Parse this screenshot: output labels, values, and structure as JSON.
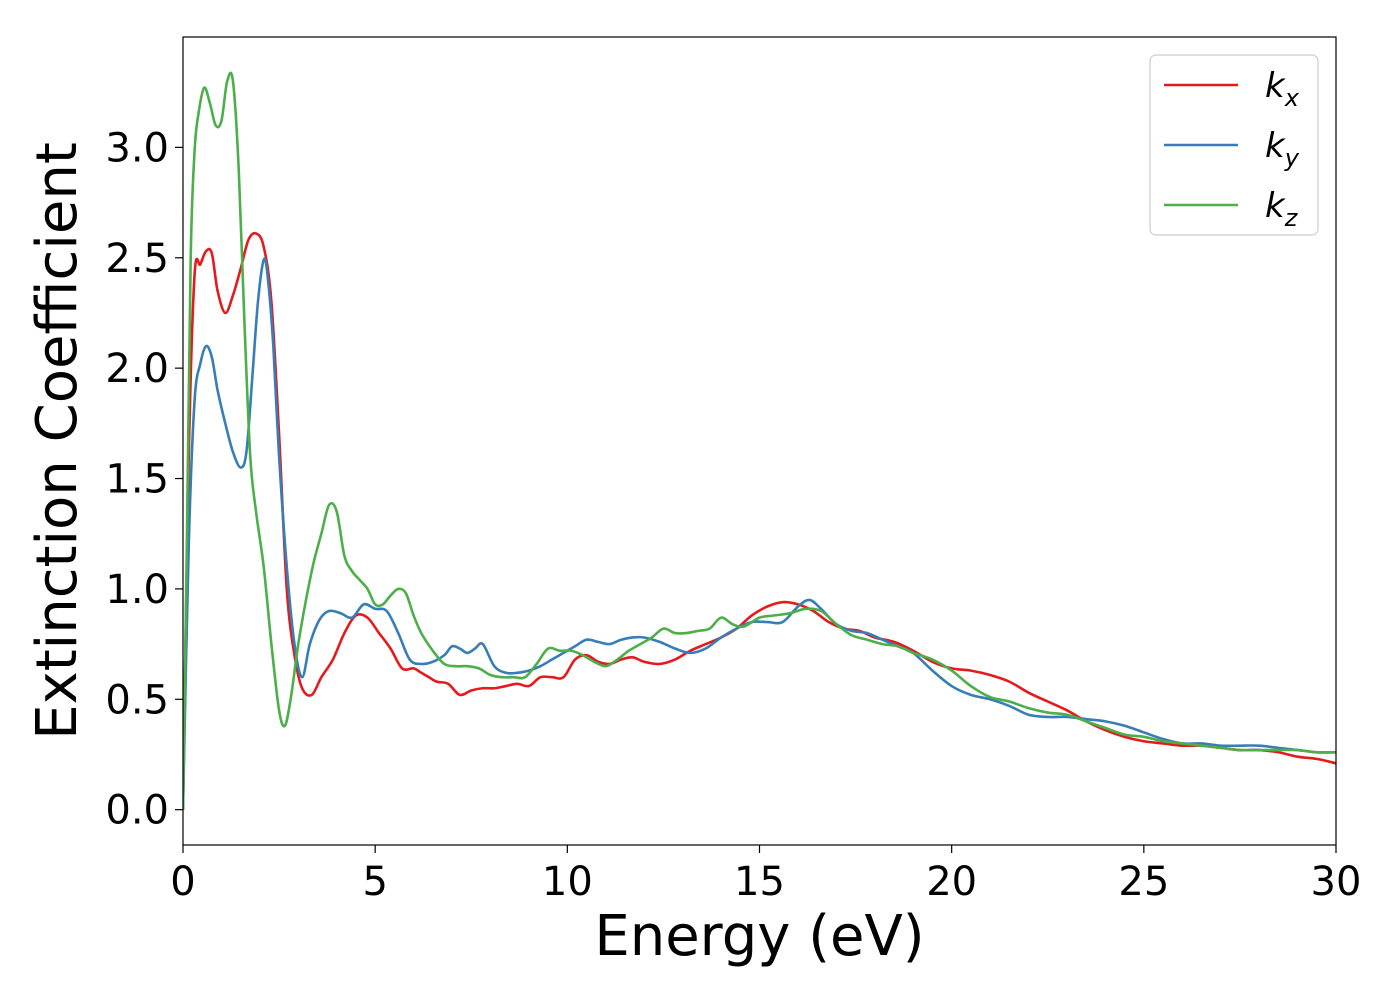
{
  "chart_data": {
    "type": "line",
    "xlabel": "Energy (eV)",
    "ylabel": "Extinction Coefficient",
    "xlim": [
      0,
      30
    ],
    "ylim": [
      -0.16,
      3.5
    ],
    "xticks": [
      "0",
      "5",
      "10",
      "15",
      "20",
      "25",
      "30"
    ],
    "yticks": [
      "0.0",
      "0.5",
      "1.0",
      "1.5",
      "2.0",
      "2.5",
      "3.0"
    ],
    "grid": false,
    "legend_position": "top-right",
    "series": [
      {
        "name": "k",
        "sub": "x",
        "color": "#e41a1c",
        "x": [
          0,
          0.15,
          0.3,
          0.45,
          0.6,
          0.75,
          0.9,
          1.1,
          1.3,
          1.5,
          1.7,
          1.9,
          2.1,
          2.3,
          2.5,
          2.7,
          2.9,
          3.1,
          3.35,
          3.6,
          3.9,
          4.2,
          4.5,
          4.8,
          5.1,
          5.4,
          5.7,
          6.0,
          6.2,
          6.4,
          6.6,
          6.9,
          7.2,
          7.5,
          7.8,
          8.1,
          8.4,
          8.7,
          9.0,
          9.3,
          9.6,
          9.9,
          10.2,
          10.5,
          10.8,
          11.1,
          11.4,
          11.7,
          12.0,
          12.4,
          12.8,
          13.2,
          13.6,
          14.0,
          14.4,
          14.8,
          15.2,
          15.6,
          16.0,
          16.4,
          16.8,
          17.2,
          17.6,
          18.0,
          18.5,
          19.0,
          19.5,
          20.0,
          20.5,
          21.0,
          21.5,
          22.0,
          22.5,
          23.0,
          23.5,
          24.0,
          24.5,
          25.0,
          25.5,
          26.0,
          26.5,
          27.0,
          27.5,
          28.0,
          28.5,
          29.0,
          29.5,
          30.0
        ],
        "y": [
          0,
          1.6,
          2.42,
          2.47,
          2.53,
          2.52,
          2.35,
          2.25,
          2.33,
          2.45,
          2.58,
          2.61,
          2.55,
          2.3,
          1.7,
          1.0,
          0.7,
          0.55,
          0.52,
          0.6,
          0.68,
          0.8,
          0.88,
          0.87,
          0.8,
          0.73,
          0.64,
          0.64,
          0.62,
          0.6,
          0.58,
          0.57,
          0.52,
          0.54,
          0.55,
          0.55,
          0.56,
          0.57,
          0.56,
          0.6,
          0.6,
          0.6,
          0.68,
          0.7,
          0.67,
          0.66,
          0.68,
          0.69,
          0.67,
          0.66,
          0.68,
          0.72,
          0.75,
          0.78,
          0.82,
          0.88,
          0.92,
          0.94,
          0.93,
          0.9,
          0.85,
          0.82,
          0.81,
          0.78,
          0.76,
          0.72,
          0.67,
          0.64,
          0.63,
          0.61,
          0.58,
          0.53,
          0.49,
          0.45,
          0.4,
          0.36,
          0.33,
          0.31,
          0.3,
          0.29,
          0.29,
          0.28,
          0.27,
          0.27,
          0.26,
          0.24,
          0.23,
          0.21
        ]
      },
      {
        "name": "k",
        "sub": "y",
        "color": "#377eb8",
        "x": [
          0,
          0.15,
          0.3,
          0.45,
          0.6,
          0.75,
          0.9,
          1.1,
          1.3,
          1.5,
          1.65,
          1.8,
          1.95,
          2.1,
          2.2,
          2.35,
          2.5,
          2.7,
          2.9,
          3.1,
          3.3,
          3.55,
          3.8,
          4.1,
          4.4,
          4.7,
          5.0,
          5.3,
          5.6,
          5.9,
          6.2,
          6.5,
          6.8,
          7.0,
          7.2,
          7.4,
          7.6,
          7.8,
          8.1,
          8.4,
          8.7,
          9.0,
          9.3,
          9.6,
          9.9,
          10.2,
          10.5,
          10.8,
          11.1,
          11.4,
          11.7,
          12.0,
          12.4,
          12.8,
          13.2,
          13.6,
          14.0,
          14.4,
          14.8,
          15.2,
          15.6,
          16.0,
          16.3,
          16.6,
          17.0,
          17.4,
          17.8,
          18.2,
          18.6,
          19.0,
          19.5,
          20.0,
          20.5,
          21.0,
          21.5,
          22.0,
          22.5,
          23.0,
          23.5,
          24.0,
          24.5,
          25.0,
          25.5,
          26.0,
          26.5,
          27.0,
          27.5,
          28.0,
          28.5,
          29.0,
          29.5,
          30.0
        ],
        "y": [
          0,
          1.2,
          1.85,
          2.02,
          2.1,
          2.05,
          1.9,
          1.75,
          1.62,
          1.55,
          1.62,
          1.95,
          2.3,
          2.49,
          2.42,
          2.1,
          1.6,
          1.1,
          0.75,
          0.6,
          0.75,
          0.86,
          0.9,
          0.89,
          0.87,
          0.93,
          0.91,
          0.9,
          0.8,
          0.68,
          0.66,
          0.67,
          0.7,
          0.74,
          0.73,
          0.71,
          0.73,
          0.75,
          0.65,
          0.62,
          0.62,
          0.63,
          0.65,
          0.68,
          0.71,
          0.74,
          0.77,
          0.76,
          0.75,
          0.77,
          0.78,
          0.78,
          0.76,
          0.73,
          0.71,
          0.73,
          0.78,
          0.82,
          0.85,
          0.85,
          0.85,
          0.92,
          0.95,
          0.91,
          0.84,
          0.81,
          0.8,
          0.77,
          0.74,
          0.71,
          0.63,
          0.56,
          0.52,
          0.5,
          0.47,
          0.43,
          0.42,
          0.42,
          0.41,
          0.4,
          0.38,
          0.35,
          0.32,
          0.3,
          0.3,
          0.29,
          0.29,
          0.29,
          0.28,
          0.27,
          0.26,
          0.26
        ]
      },
      {
        "name": "k",
        "sub": "z",
        "color": "#4daf4a",
        "x": [
          0,
          0.1,
          0.2,
          0.3,
          0.4,
          0.55,
          0.7,
          0.85,
          1.0,
          1.15,
          1.3,
          1.45,
          1.6,
          1.75,
          1.9,
          2.1,
          2.3,
          2.5,
          2.65,
          2.8,
          3.0,
          3.2,
          3.4,
          3.6,
          3.8,
          4.0,
          4.2,
          4.4,
          4.6,
          4.8,
          5.0,
          5.2,
          5.4,
          5.6,
          5.8,
          6.0,
          6.2,
          6.5,
          6.8,
          7.1,
          7.4,
          7.7,
          8.0,
          8.3,
          8.6,
          8.9,
          9.2,
          9.5,
          9.8,
          10.1,
          10.4,
          10.7,
          11.0,
          11.3,
          11.6,
          11.9,
          12.2,
          12.5,
          12.8,
          13.1,
          13.4,
          13.7,
          14.0,
          14.3,
          14.6,
          15.0,
          15.4,
          15.8,
          16.2,
          16.6,
          17.0,
          17.4,
          17.8,
          18.2,
          18.6,
          19.0,
          19.5,
          20.0,
          20.5,
          21.0,
          21.5,
          22.0,
          22.5,
          23.0,
          23.5,
          24.0,
          24.5,
          25.0,
          25.5,
          26.0,
          26.5,
          27.0,
          27.5,
          28.0,
          28.5,
          29.0,
          29.5,
          30.0
        ],
        "y": [
          0,
          1.2,
          2.5,
          2.98,
          3.15,
          3.27,
          3.2,
          3.1,
          3.12,
          3.3,
          3.3,
          2.9,
          2.2,
          1.6,
          1.35,
          1.1,
          0.75,
          0.45,
          0.38,
          0.5,
          0.75,
          0.95,
          1.12,
          1.25,
          1.38,
          1.35,
          1.15,
          1.08,
          1.04,
          1.0,
          0.93,
          0.93,
          0.97,
          1.0,
          0.98,
          0.88,
          0.8,
          0.72,
          0.66,
          0.65,
          0.65,
          0.64,
          0.61,
          0.6,
          0.6,
          0.6,
          0.66,
          0.73,
          0.72,
          0.72,
          0.7,
          0.67,
          0.65,
          0.68,
          0.72,
          0.75,
          0.78,
          0.82,
          0.8,
          0.8,
          0.81,
          0.82,
          0.87,
          0.84,
          0.83,
          0.87,
          0.88,
          0.89,
          0.91,
          0.9,
          0.84,
          0.79,
          0.77,
          0.75,
          0.74,
          0.71,
          0.68,
          0.63,
          0.56,
          0.51,
          0.49,
          0.46,
          0.44,
          0.43,
          0.4,
          0.37,
          0.34,
          0.33,
          0.31,
          0.3,
          0.29,
          0.28,
          0.27,
          0.27,
          0.27,
          0.27,
          0.26,
          0.26
        ]
      }
    ]
  }
}
